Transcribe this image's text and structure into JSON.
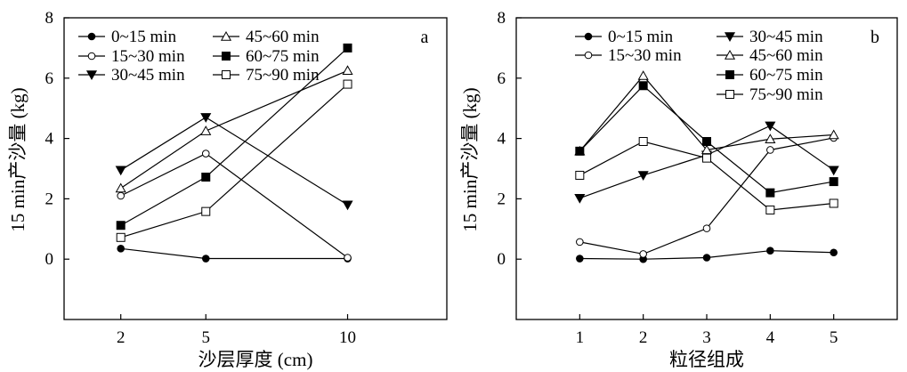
{
  "chart_data": [
    {
      "panel_label": "a",
      "type": "line",
      "xlabel": "沙层厚度 (cm)",
      "ylabel": "15 min产沙量 (kg)",
      "x": [
        2,
        5,
        10
      ],
      "x_ticks": [
        2,
        5,
        10
      ],
      "xlim": [
        0,
        13.5
      ],
      "ylim": [
        -2,
        8
      ],
      "y_ticks": [
        0,
        2,
        4,
        6,
        8
      ],
      "grid": false,
      "legend_position": "top-left, 2 columns",
      "series": [
        {
          "name": "0~15 min",
          "marker": "filled-circle",
          "values": [
            0.35,
            0.02,
            0.02
          ]
        },
        {
          "name": "15~30 min",
          "marker": "open-circle",
          "values": [
            2.1,
            3.5,
            0.05
          ]
        },
        {
          "name": "30~45 min",
          "marker": "filled-triangle-down",
          "values": [
            2.95,
            4.7,
            1.8
          ]
        },
        {
          "name": "45~60 min",
          "marker": "open-triangle-up",
          "values": [
            2.35,
            4.25,
            6.25
          ]
        },
        {
          "name": "60~75 min",
          "marker": "filled-square",
          "values": [
            1.12,
            2.72,
            7.0
          ]
        },
        {
          "name": "75~90 min",
          "marker": "open-square",
          "values": [
            0.72,
            1.58,
            5.8
          ]
        }
      ]
    },
    {
      "panel_label": "b",
      "type": "line",
      "xlabel": "粒径组成",
      "ylabel": "15 min产沙量 (kg)",
      "x": [
        1,
        2,
        3,
        4,
        5
      ],
      "x_ticks": [
        1,
        2,
        3,
        4,
        5
      ],
      "xlim": [
        0,
        6
      ],
      "ylim": [
        -2,
        8
      ],
      "y_ticks": [
        0,
        2,
        4,
        6,
        8
      ],
      "grid": false,
      "legend_position": "top, 2 columns",
      "series": [
        {
          "name": "0~15 min",
          "marker": "filled-circle",
          "values": [
            0.02,
            0.0,
            0.05,
            0.28,
            0.22
          ]
        },
        {
          "name": "15~30 min",
          "marker": "open-circle",
          "values": [
            0.57,
            0.17,
            1.02,
            3.62,
            4.02
          ]
        },
        {
          "name": "30~45 min",
          "marker": "filled-triangle-down",
          "values": [
            2.02,
            2.78,
            3.45,
            4.42,
            2.95
          ]
        },
        {
          "name": "45~60 min",
          "marker": "open-triangle-up",
          "values": [
            3.58,
            6.08,
            3.62,
            3.98,
            4.12
          ]
        },
        {
          "name": "60~75 min",
          "marker": "filled-square",
          "values": [
            3.58,
            5.75,
            3.9,
            2.2,
            2.57
          ]
        },
        {
          "name": "75~90 min",
          "marker": "open-square",
          "values": [
            2.78,
            3.9,
            3.35,
            1.63,
            1.85
          ]
        }
      ]
    }
  ]
}
